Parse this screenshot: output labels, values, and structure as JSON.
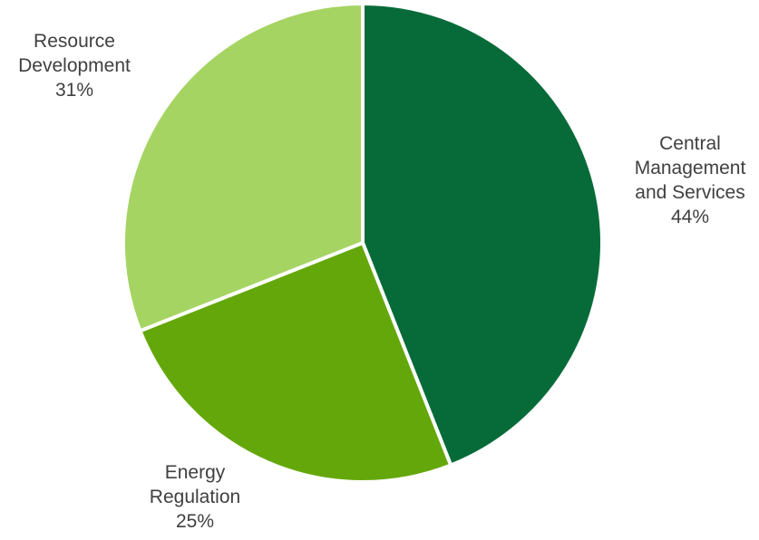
{
  "chart_data": {
    "type": "pie",
    "title": "",
    "slices": [
      {
        "name_lines": [
          "Central",
          "Management",
          "and Services"
        ],
        "value": 44,
        "pct_label": "44%",
        "color": "#066B38"
      },
      {
        "name_lines": [
          "Energy",
          "Regulation"
        ],
        "value": 25,
        "pct_label": "25%",
        "color": "#64A70B"
      },
      {
        "name_lines": [
          "Resource",
          "Development"
        ],
        "value": 31,
        "pct_label": "31%",
        "color": "#A5D463"
      }
    ],
    "start_angle_deg": 0,
    "direction": "clockwise",
    "slice_border_color": "#ffffff",
    "labels": "outside",
    "legend": "none"
  }
}
